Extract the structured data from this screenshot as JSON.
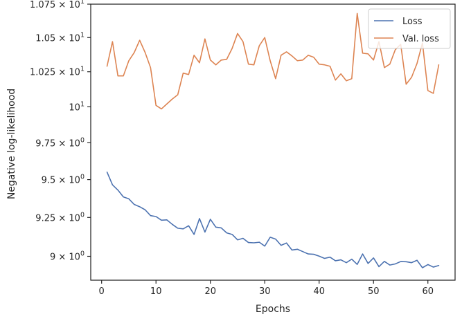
{
  "chart_data": {
    "type": "line",
    "title": "",
    "xlabel": "Epochs",
    "ylabel": "Negative log-likelihood",
    "yscale": "log",
    "xlim": [
      -2,
      65
    ],
    "ylim": [
      8.85,
      10.75
    ],
    "grid": false,
    "legend_position": "top-right",
    "x_ticks": [
      {
        "value": 0,
        "label": "0"
      },
      {
        "value": 10,
        "label": "10"
      },
      {
        "value": 20,
        "label": "20"
      },
      {
        "value": 30,
        "label": "30"
      },
      {
        "value": 40,
        "label": "40"
      },
      {
        "value": 50,
        "label": "50"
      },
      {
        "value": 60,
        "label": "60"
      }
    ],
    "y_ticks": [
      {
        "value": 9.0,
        "mantissa": "9",
        "base": "10",
        "exp": "0"
      },
      {
        "value": 9.25,
        "mantissa": "9.25",
        "base": "10",
        "exp": "0"
      },
      {
        "value": 9.5,
        "mantissa": "9.5",
        "base": "10",
        "exp": "0"
      },
      {
        "value": 9.75,
        "mantissa": "9.75",
        "base": "10",
        "exp": "0"
      },
      {
        "value": 10.0,
        "mantissa": "",
        "base": "10",
        "exp": "1"
      },
      {
        "value": 10.25,
        "mantissa": "1.025",
        "base": "10",
        "exp": "1"
      },
      {
        "value": 10.5,
        "mantissa": "1.05",
        "base": "10",
        "exp": "1"
      },
      {
        "value": 10.75,
        "mantissa": "1.075",
        "base": "10",
        "exp": "1"
      }
    ],
    "series": [
      {
        "name": "Loss",
        "color": "#4c72b0",
        "x": [
          1,
          2,
          3,
          4,
          5,
          6,
          7,
          8,
          9,
          10,
          11,
          12,
          13,
          14,
          15,
          16,
          17,
          18,
          19,
          20,
          21,
          22,
          23,
          24,
          25,
          26,
          27,
          28,
          29,
          30,
          31,
          32,
          33,
          34,
          35,
          36,
          37,
          38,
          39,
          40,
          41,
          42,
          43,
          44,
          45,
          46,
          47,
          48,
          49,
          50,
          51,
          52,
          53,
          54,
          55,
          56,
          57,
          58,
          59,
          60,
          61,
          62
        ],
        "values": [
          9.55,
          9.465,
          9.43,
          9.385,
          9.372,
          9.335,
          9.32,
          9.3,
          9.262,
          9.256,
          9.232,
          9.234,
          9.205,
          9.18,
          9.176,
          9.196,
          9.14,
          9.243,
          9.155,
          9.238,
          9.187,
          9.182,
          9.15,
          9.14,
          9.105,
          9.115,
          9.088,
          9.086,
          9.09,
          9.065,
          9.122,
          9.11,
          9.07,
          9.085,
          9.04,
          9.045,
          9.03,
          9.015,
          9.013,
          9.001,
          8.987,
          8.995,
          8.972,
          8.978,
          8.96,
          8.982,
          8.949,
          9.015,
          8.955,
          8.99,
          8.935,
          8.968,
          8.945,
          8.952,
          8.967,
          8.966,
          8.96,
          8.975,
          8.928,
          8.948,
          8.932,
          8.942
        ]
      },
      {
        "name": "Val. loss",
        "color": "#dd8452",
        "x": [
          1,
          2,
          3,
          4,
          5,
          6,
          7,
          8,
          9,
          10,
          11,
          12,
          13,
          14,
          15,
          16,
          17,
          18,
          19,
          20,
          21,
          22,
          23,
          24,
          25,
          26,
          27,
          28,
          29,
          30,
          31,
          32,
          33,
          34,
          35,
          36,
          37,
          38,
          39,
          40,
          41,
          42,
          43,
          44,
          45,
          46,
          47,
          48,
          49,
          50,
          51,
          52,
          53,
          54,
          55,
          56,
          57,
          58,
          59,
          60,
          61,
          62
        ],
        "values": [
          10.29,
          10.47,
          10.22,
          10.22,
          10.33,
          10.39,
          10.48,
          10.39,
          10.28,
          10.01,
          9.985,
          10.02,
          10.055,
          10.085,
          10.24,
          10.23,
          10.37,
          10.315,
          10.49,
          10.335,
          10.3,
          10.335,
          10.34,
          10.42,
          10.53,
          10.47,
          10.305,
          10.3,
          10.44,
          10.5,
          10.33,
          10.2,
          10.37,
          10.395,
          10.365,
          10.33,
          10.335,
          10.37,
          10.355,
          10.305,
          10.3,
          10.29,
          10.19,
          10.235,
          10.185,
          10.2,
          10.68,
          10.385,
          10.38,
          10.335,
          10.47,
          10.28,
          10.305,
          10.41,
          10.45,
          10.16,
          10.21,
          10.31,
          10.46,
          10.115,
          10.095,
          10.3
        ]
      }
    ]
  }
}
